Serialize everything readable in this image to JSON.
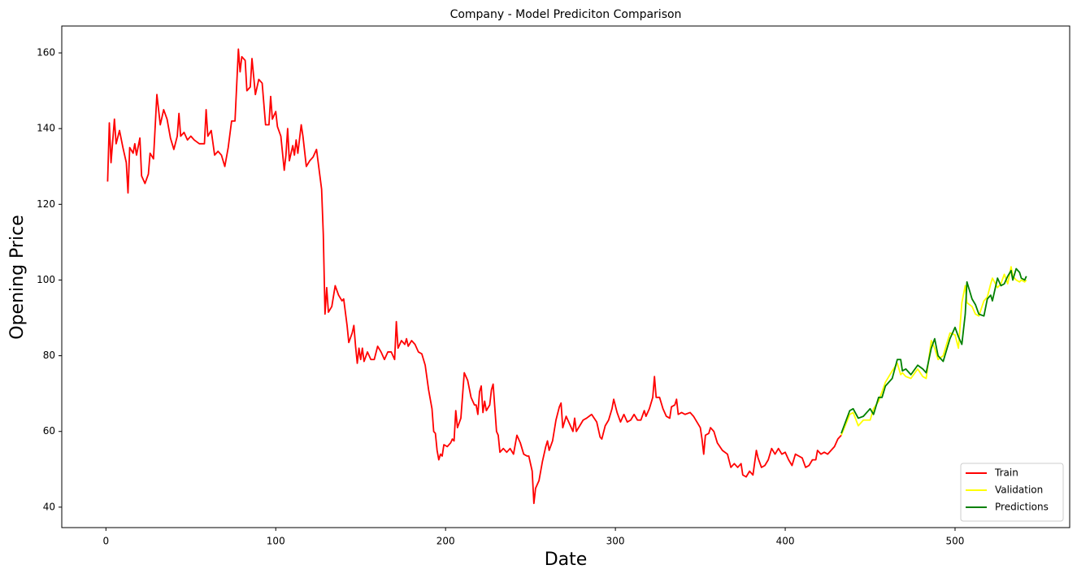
{
  "chart_data": {
    "type": "line",
    "title": "Company - Model Prediciton Comparison",
    "x_label": "Date",
    "y_label": "Opening Price",
    "xlim": [
      -26,
      567.5
    ],
    "ylim": [
      34.6,
      167.1
    ],
    "xticks": [
      0,
      100,
      200,
      300,
      400,
      500
    ],
    "yticks": [
      40,
      60,
      80,
      100,
      120,
      140,
      160
    ],
    "legend": "lower right",
    "series": [
      {
        "name": "Train",
        "color": "#ff0000",
        "x": [
          1,
          2,
          3,
          5,
          6,
          8,
          10,
          12,
          13,
          14,
          16,
          17,
          18,
          20,
          21,
          23,
          25,
          26,
          28,
          30,
          32,
          34,
          36,
          38,
          40,
          42,
          43,
          44,
          46,
          48,
          50,
          52,
          55,
          58,
          59,
          60,
          62,
          64,
          66,
          68,
          70,
          72,
          74,
          76,
          78,
          79,
          80,
          82,
          83,
          85,
          86,
          88,
          90,
          92,
          94,
          96,
          97,
          98,
          100,
          101,
          103,
          105,
          106,
          107,
          108,
          110,
          111,
          112,
          113,
          115,
          116,
          118,
          120,
          122,
          124,
          126,
          127,
          128,
          129,
          130,
          131,
          133,
          135,
          137,
          139,
          140,
          142,
          143,
          145,
          146,
          147,
          148,
          149,
          150,
          151,
          152,
          154,
          156,
          158,
          160,
          162,
          164,
          166,
          168,
          170,
          171,
          172,
          174,
          176,
          177,
          178,
          180,
          182,
          184,
          186,
          188,
          190,
          192,
          193,
          194,
          195,
          196,
          197,
          198,
          199,
          201,
          203,
          204,
          205,
          206,
          207,
          209,
          211,
          213,
          215,
          217,
          218,
          219,
          220,
          221,
          222,
          223,
          224,
          226,
          227,
          228,
          230,
          231,
          232,
          234,
          236,
          238,
          240,
          242,
          244,
          246,
          248,
          249,
          251,
          252,
          253,
          255,
          257,
          259,
          260,
          261,
          263,
          265,
          267,
          268,
          269,
          271,
          273,
          275,
          276,
          277,
          279,
          281,
          283,
          286,
          289,
          291,
          292,
          294,
          296,
          298,
          299,
          301,
          303,
          305,
          307,
          309,
          311,
          313,
          315,
          317,
          318,
          320,
          322,
          323,
          324,
          326,
          328,
          330,
          332,
          333,
          335,
          336,
          337,
          339,
          341,
          344,
          346,
          348,
          350,
          351,
          352,
          353,
          355,
          356,
          358,
          360,
          363,
          366,
          368,
          370,
          372,
          374,
          375,
          377,
          379,
          381,
          383,
          384,
          386,
          388,
          390,
          392,
          394,
          396,
          398,
          400,
          402,
          404,
          406,
          408,
          410,
          412,
          414,
          416,
          418,
          419,
          421,
          423,
          425,
          427,
          429,
          431,
          433
        ],
        "values": [
          126,
          141.5,
          131,
          142.5,
          136,
          139.5,
          135,
          131,
          123,
          135,
          133.5,
          136,
          133,
          137.5,
          127.5,
          125.5,
          128,
          133.5,
          132,
          149,
          141,
          145,
          142.5,
          137.5,
          134.5,
          138,
          144,
          138,
          139,
          137,
          138,
          137,
          136,
          136,
          145,
          138,
          139.5,
          133,
          134,
          133,
          130,
          135,
          142,
          142,
          161,
          155,
          159,
          158,
          150,
          151,
          158.5,
          149,
          153,
          152,
          141,
          141,
          148.5,
          142.5,
          144.5,
          140.5,
          138,
          129,
          133,
          140,
          131.5,
          135.5,
          133,
          137,
          133.5,
          141,
          138,
          130,
          131.5,
          132.5,
          134.5,
          127.5,
          124,
          112,
          91,
          98,
          91.5,
          93,
          98.5,
          96,
          94.5,
          95,
          88,
          83.5,
          86,
          88,
          82.5,
          78,
          82,
          79,
          82,
          78.5,
          81,
          79,
          79,
          82.5,
          81,
          79,
          81,
          81,
          79,
          89,
          82,
          84,
          83,
          84.5,
          82.5,
          84,
          83,
          81,
          80.5,
          77.5,
          71,
          66,
          60,
          59.5,
          55,
          52.5,
          54,
          53.5,
          56.5,
          56,
          57,
          58,
          57.5,
          65.5,
          61,
          63.5,
          75.5,
          73.5,
          69,
          67,
          67,
          64.5,
          70.5,
          72,
          65,
          68,
          65.5,
          67,
          71,
          72.5,
          60,
          59,
          54.5,
          55.5,
          54.5,
          55.5,
          54,
          59,
          57,
          54,
          53.5,
          53.5,
          49.5,
          41,
          45,
          47,
          52,
          56,
          57.5,
          55,
          57.5,
          63,
          66.5,
          67.5,
          61,
          64,
          62,
          60,
          63.5,
          60,
          61.5,
          63,
          63.5,
          64.5,
          62.5,
          58.5,
          58,
          61.5,
          63,
          66,
          68.5,
          65,
          62.5,
          64.5,
          62.5,
          63,
          64.5,
          63,
          63,
          65.5,
          64,
          66,
          69,
          74.5,
          69,
          69,
          66,
          64,
          63.5,
          66.5,
          67,
          68.5,
          64.5,
          65,
          64.5,
          65,
          64,
          62.5,
          61,
          58,
          54,
          59,
          59.5,
          61,
          60,
          57,
          55,
          54,
          50.5,
          51.5,
          50.5,
          51.5,
          48.5,
          48,
          49.5,
          48.5,
          55,
          53,
          50.5,
          51,
          52.5,
          55.5,
          54,
          55.5,
          54,
          54.5,
          52.5,
          51,
          54,
          53.5,
          53,
          50.5,
          51,
          52.5,
          52.5,
          55,
          54,
          54.5,
          54,
          55,
          56,
          58,
          59
        ]
      },
      {
        "name": "Validation",
        "color": "#ffff00",
        "x": [
          433,
          438,
          440,
          443,
          446,
          450,
          452,
          455,
          457,
          459,
          463,
          466,
          468,
          469,
          471,
          474,
          478,
          481,
          483,
          486,
          488,
          490,
          493,
          497,
          500,
          502,
          504,
          506,
          507,
          510,
          512,
          514,
          517,
          519,
          521,
          522,
          525,
          527,
          529,
          531,
          533,
          534,
          536,
          538,
          539,
          541,
          542
        ],
        "values": [
          59,
          64.5,
          65,
          61.5,
          63,
          63,
          66,
          68,
          70.5,
          73,
          76,
          78,
          75,
          75.5,
          74.5,
          74,
          76.5,
          74.5,
          74,
          84,
          82,
          79,
          80,
          86,
          85.5,
          82,
          94,
          98.5,
          94,
          93,
          91,
          90.5,
          94.5,
          95.5,
          99,
          100.5,
          98,
          99,
          101.5,
          99,
          103.5,
          101,
          100,
          99.5,
          100,
          99.5,
          100
        ]
      },
      {
        "name": "Predictions",
        "color": "#008000",
        "x": [
          433,
          438,
          440,
          443,
          446,
          450,
          452,
          455,
          457,
          459,
          463,
          466,
          468,
          469,
          471,
          474,
          478,
          481,
          483,
          486,
          488,
          490,
          493,
          497,
          500,
          502,
          504,
          506,
          507,
          510,
          512,
          514,
          517,
          519,
          521,
          522,
          525,
          527,
          529,
          531,
          533,
          534,
          536,
          538,
          539,
          541,
          542
        ],
        "values": [
          59.5,
          65.5,
          66,
          63.5,
          64,
          66,
          64.5,
          69,
          69,
          72,
          74,
          79,
          79,
          76,
          76.5,
          75,
          77.5,
          76.5,
          75.5,
          82,
          84.5,
          80,
          78.5,
          84.5,
          87.5,
          85,
          83,
          91,
          99.5,
          95,
          93.5,
          91,
          90.5,
          95,
          96,
          94.5,
          100.5,
          98.5,
          99,
          101,
          102.5,
          100,
          103,
          102,
          100.5,
          100,
          101
        ]
      }
    ]
  }
}
